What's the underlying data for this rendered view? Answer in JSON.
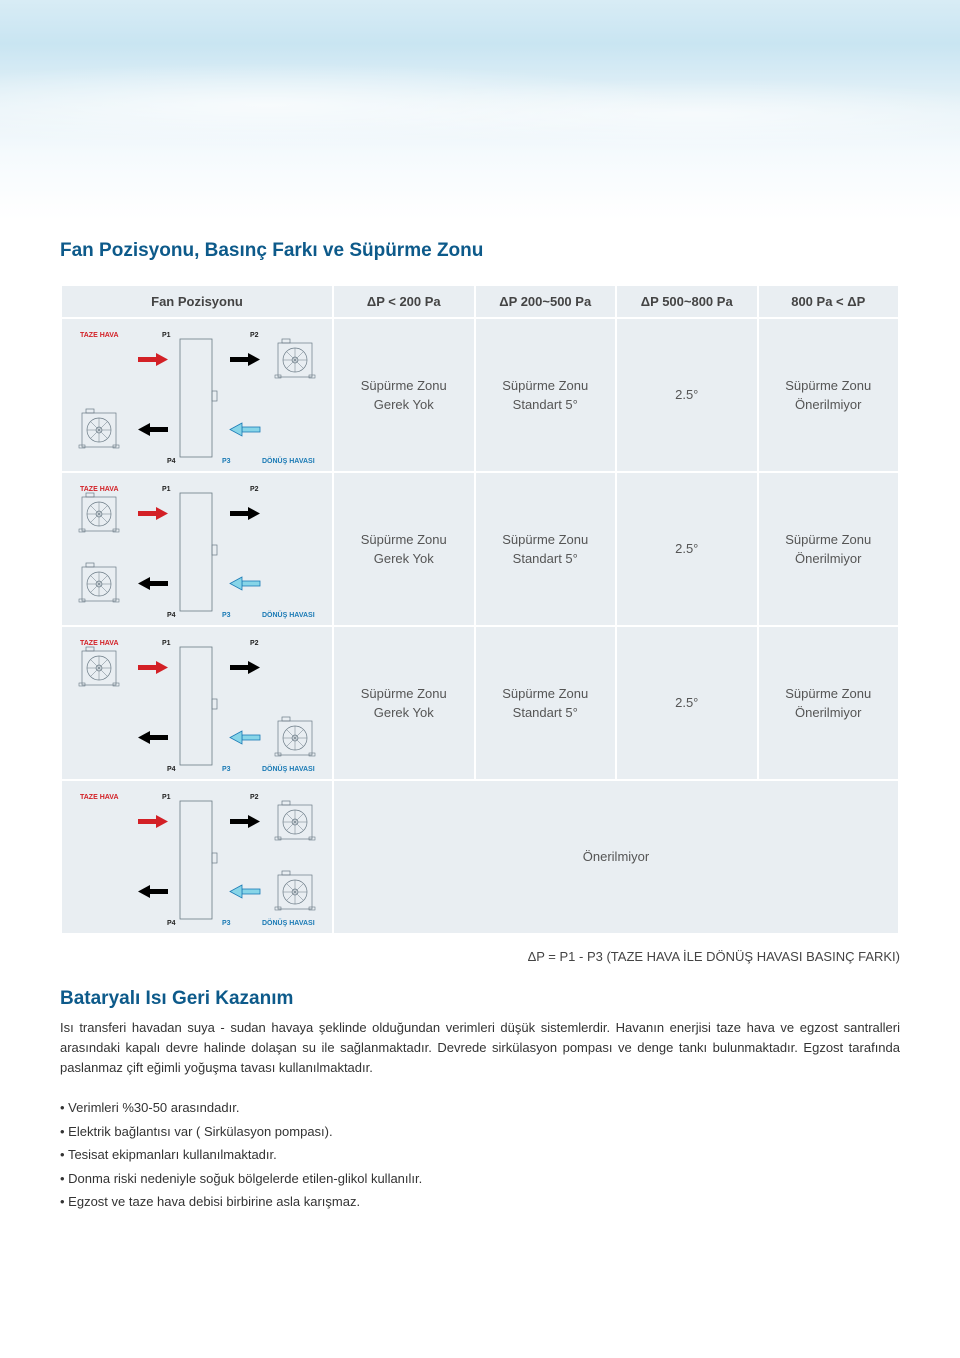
{
  "colors": {
    "heading": "#0d5a8a",
    "table_header_bg": "#e9eef2",
    "table_cell_bg": "#e9eef2",
    "text": "#333333",
    "red": "#d32026",
    "blue": "#1a7ab5",
    "cyan_arrow": "#87d5e8",
    "fan_stroke": "#6a7a85"
  },
  "section1": {
    "title": "Fan Pozisyonu, Basınç Farkı ve Süpürme Zonu"
  },
  "table": {
    "headers": [
      "Fan Pozisyonu",
      "ΔP < 200 Pa",
      "ΔP 200~500 Pa",
      "ΔP 500~800 Pa",
      "800 Pa < ΔP"
    ],
    "diagram_labels": {
      "taze_hava": "TAZE HAVA",
      "donus_havasi": "DÖNÜŞ HAVASI",
      "p1": "P1",
      "p2": "P2",
      "p3": "P3",
      "p4": "P4"
    },
    "fan_positions": [
      {
        "tl": false,
        "tr": true,
        "bl": true,
        "br": false
      },
      {
        "tl": true,
        "tr": false,
        "bl": true,
        "br": false
      },
      {
        "tl": true,
        "tr": false,
        "bl": false,
        "br": true
      },
      {
        "tl": false,
        "tr": true,
        "bl": false,
        "br": true
      }
    ],
    "cells": {
      "no_zone": "Süpürme Zonu\nGerek Yok",
      "std5": "Süpürme Zonu\nStandart 5°",
      "deg25": "2.5°",
      "not_rec": "Süpürme Zonu\nÖnerilmiyor",
      "not_rec_single": "Önerilmiyor"
    }
  },
  "footnote": "ΔP = P1 - P3 (TAZE HAVA İLE DÖNÜŞ HAVASI BASINÇ FARKI)",
  "section2": {
    "title": "Bataryalı Isı Geri Kazanım",
    "body": "Isı transferi havadan suya - sudan havaya şeklinde olduğundan verimleri düşük sistemlerdir. Havanın enerjisi taze hava ve egzost santralleri arasındaki kapalı devre halinde dolaşan su ile sağlanmaktadır. Devrede sirkülasyon pompası ve denge tankı bulunmaktadır. Egzost tarafında paslanmaz çift eğimli yoğuşma tavası kullanılmaktadır.",
    "bullets": [
      "Verimleri %30-50 arasındadır.",
      "Elektrik bağlantısı var ( Sirkülasyon pompası).",
      "Tesisat ekipmanları kullanılmaktadır.",
      "Donma riski nedeniyle soğuk bölgelerde etilen-glikol kullanılır.",
      "Egzost ve taze hava debisi birbirine asla karışmaz."
    ]
  }
}
